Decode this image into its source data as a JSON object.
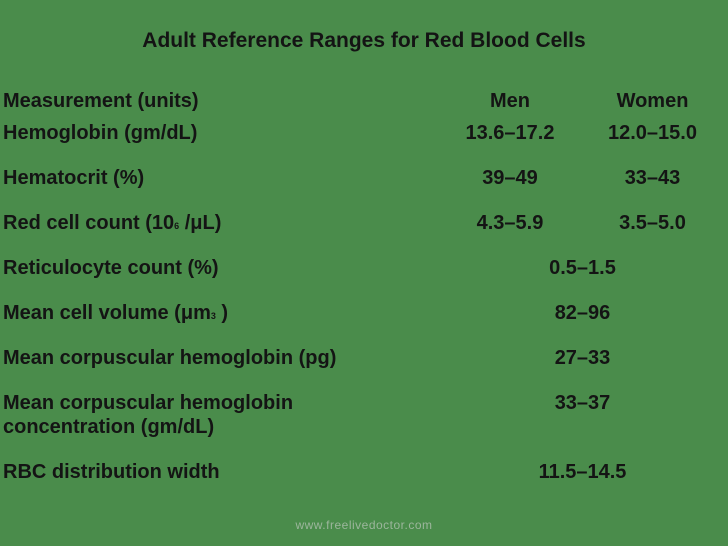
{
  "slide": {
    "title": "Adult Reference Ranges for Red Blood Cells",
    "footer": "www.freelivedoctor.com",
    "colors": {
      "background": "#4a8c4b",
      "text": "#141414",
      "footer_text": "#9cb69c"
    }
  },
  "table": {
    "header": {
      "measurement": "Measurement (units)",
      "men": "Men",
      "women": "Women"
    },
    "rows": [
      {
        "label": [
          "Hemoglobin (gm/dL)",
          "",
          ""
        ],
        "men": "13.6–17.2",
        "women": "12.0–15.0"
      },
      {
        "label": [
          "Hematocrit (%)",
          "",
          ""
        ],
        "men": "39–49",
        "women": "33–43"
      },
      {
        "label": [
          "Red cell count (10",
          "6",
          " /μL)"
        ],
        "men": "4.3–5.9",
        "women": "3.5–5.0"
      },
      {
        "label": [
          "Reticulocyte count (%)",
          "",
          ""
        ],
        "value": "0.5–1.5"
      },
      {
        "label": [
          "Mean cell volume (μm",
          "3",
          " )"
        ],
        "value": "82–96"
      },
      {
        "label": [
          "Mean corpuscular hemoglobin (pg)",
          "",
          ""
        ],
        "value": "27–33"
      },
      {
        "label": [
          "Mean corpuscular hemoglobin\nconcentration (gm/dL)",
          "",
          ""
        ],
        "value": "33–37"
      },
      {
        "label": [
          "RBC distribution width",
          "",
          ""
        ],
        "value": "11.5–14.5"
      }
    ]
  }
}
